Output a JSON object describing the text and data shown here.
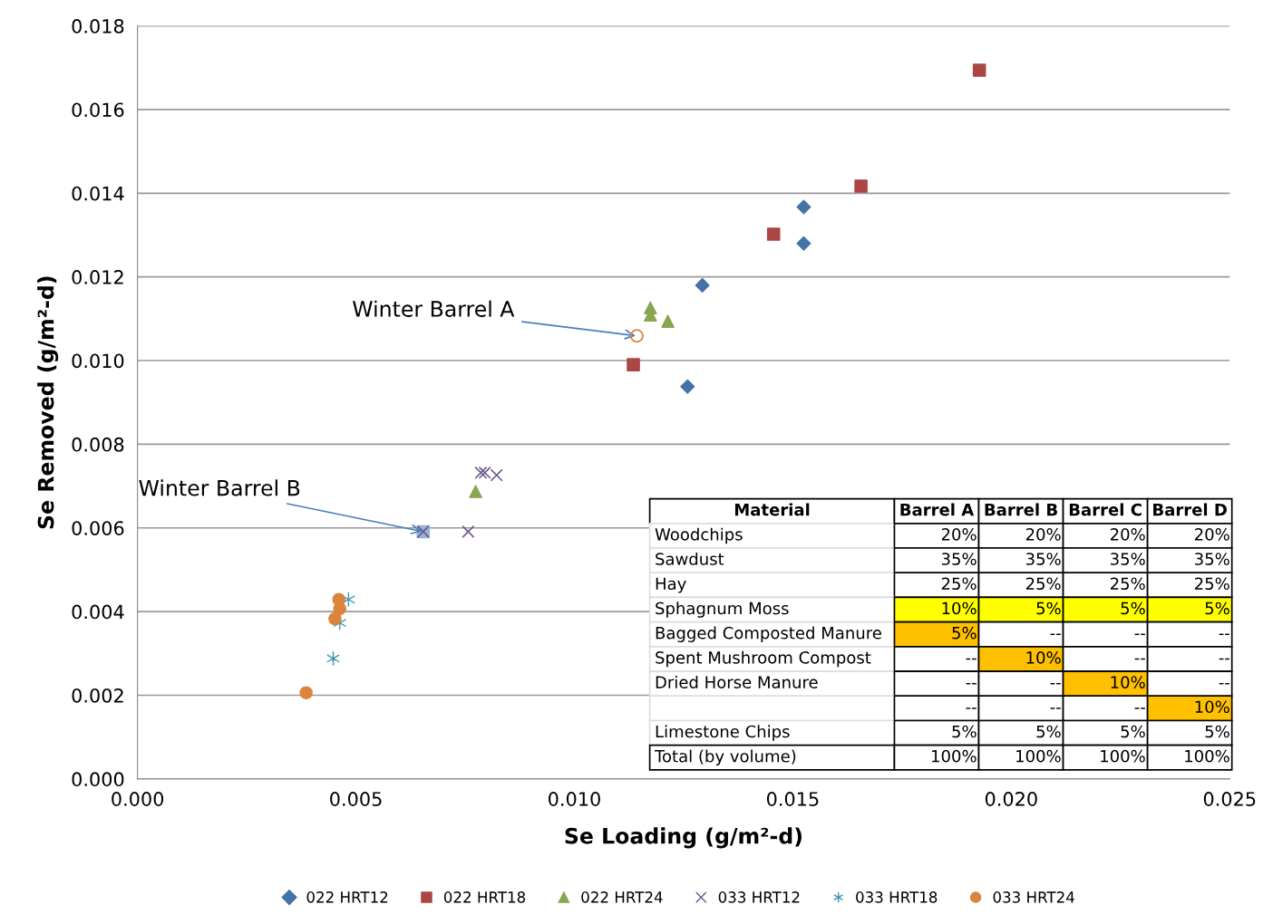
{
  "chart_data": {
    "type": "scatter",
    "xlabel": "Se Loading (g/m²-d)",
    "ylabel": "Se Removed (g/m²-d)",
    "xlim": [
      0,
      0.025
    ],
    "xticks": [
      {
        "value": 0,
        "label": "0.000"
      },
      {
        "value": 0.005,
        "label": "0.005"
      },
      {
        "value": 0.01,
        "label": "0.010"
      },
      {
        "value": 0.015,
        "label": "0.015"
      },
      {
        "value": 0.02,
        "label": "0.020"
      },
      {
        "value": 0.025,
        "label": "0.025"
      }
    ],
    "ylim": [
      0,
      0.018
    ],
    "yticks": [
      {
        "value": 0,
        "label": "0.000"
      },
      {
        "value": 0.002,
        "label": "0.002"
      },
      {
        "value": 0.004,
        "label": "0.004"
      },
      {
        "value": 0.006,
        "label": "0.006"
      },
      {
        "value": 0.008,
        "label": "0.008"
      },
      {
        "value": 0.01,
        "label": "0.010"
      },
      {
        "value": 0.012,
        "label": "0.012"
      },
      {
        "value": 0.014,
        "label": "0.014"
      },
      {
        "value": 0.016,
        "label": "0.016"
      },
      {
        "value": 0.018,
        "label": "0.018"
      }
    ],
    "grid": "y",
    "legend": "bottom",
    "series": [
      {
        "marker": "square",
        "color": "#95b3d7",
        "x": [
          0.00654
        ],
        "values": [
          0.00591
        ]
      },
      {
        "name": "022 HRT12",
        "marker": "diamond",
        "color": "#4572a7",
        "x": [
          0.01525,
          0.01525,
          0.01293,
          0.01259
        ],
        "values": [
          0.01367,
          0.0128,
          0.0118,
          0.00938
        ]
      },
      {
        "name": "022 HRT18",
        "marker": "square",
        "color": "#aa4643",
        "x": [
          0.01927,
          0.01656,
          0.01456,
          0.01135
        ],
        "values": [
          0.01694,
          0.01417,
          0.01302,
          0.0099
        ]
      },
      {
        "name": "022 HRT24",
        "marker": "triangle",
        "color": "#89a54e",
        "x": [
          0.01174,
          0.01174,
          0.01214,
          0.00774
        ],
        "values": [
          0.01126,
          0.01109,
          0.01094,
          0.00687
        ]
      },
      {
        "name": "033 HRT12",
        "marker": "cross",
        "color": "#71588f",
        "x": [
          0.00786,
          0.00795,
          0.00822,
          0.00757,
          0.00654
        ],
        "values": [
          0.00732,
          0.00732,
          0.00726,
          0.00591,
          0.00591
        ]
      },
      {
        "name": "033 HRT18",
        "color": "#4198af",
        "x": [
          0.00483,
          0.00463,
          0.00448
        ],
        "values": [
          0.00429,
          0.00373,
          0.00288
        ]
      },
      {
        "name": "033 HRT24",
        "marker": "circle",
        "color": "#db843d",
        "x": [
          0.00461,
          0.00463,
          0.00452,
          0.00386
        ],
        "values": [
          0.00429,
          0.00407,
          0.00383,
          0.00206
        ]
      },
      {
        "marker": "circle",
        "color": "#db843d",
        "x": [
          0.01143
        ],
        "values": [
          0.01059
        ]
      }
    ],
    "annotations": [
      {
        "text": "Winter Barrel A",
        "x": 0.01143,
        "y": 0.01059
      },
      {
        "text": "Winter Barrel B",
        "x": 0.00654,
        "y": 0.00591
      },
      "Material",
      "Barrel A",
      "Barrel B",
      "Barrel C",
      "Barrel D",
      "Woodchips",
      "20%",
      "20%",
      "20%",
      "20%",
      "Sawdust",
      "35%",
      "35%",
      "35%",
      "35%",
      "Hay",
      "25%",
      "25%",
      "25%",
      "25%",
      "Sphagnum Moss",
      "10%",
      "5%",
      "5%",
      "5%",
      "Bagged Composted Manure",
      "5%",
      "--",
      "--",
      "--",
      "Spent Mushroom Compost",
      "--",
      "10%",
      "--",
      "--",
      "Dried Horse Manure",
      "--",
      "--",
      "10%",
      "--",
      null,
      "--",
      "--",
      "--",
      "10%",
      "Limestone Chips",
      "5%",
      "5%",
      "5%",
      "5%",
      "Total (by volume)",
      "100%",
      "100%",
      "100%",
      "100%"
    ]
  }
}
